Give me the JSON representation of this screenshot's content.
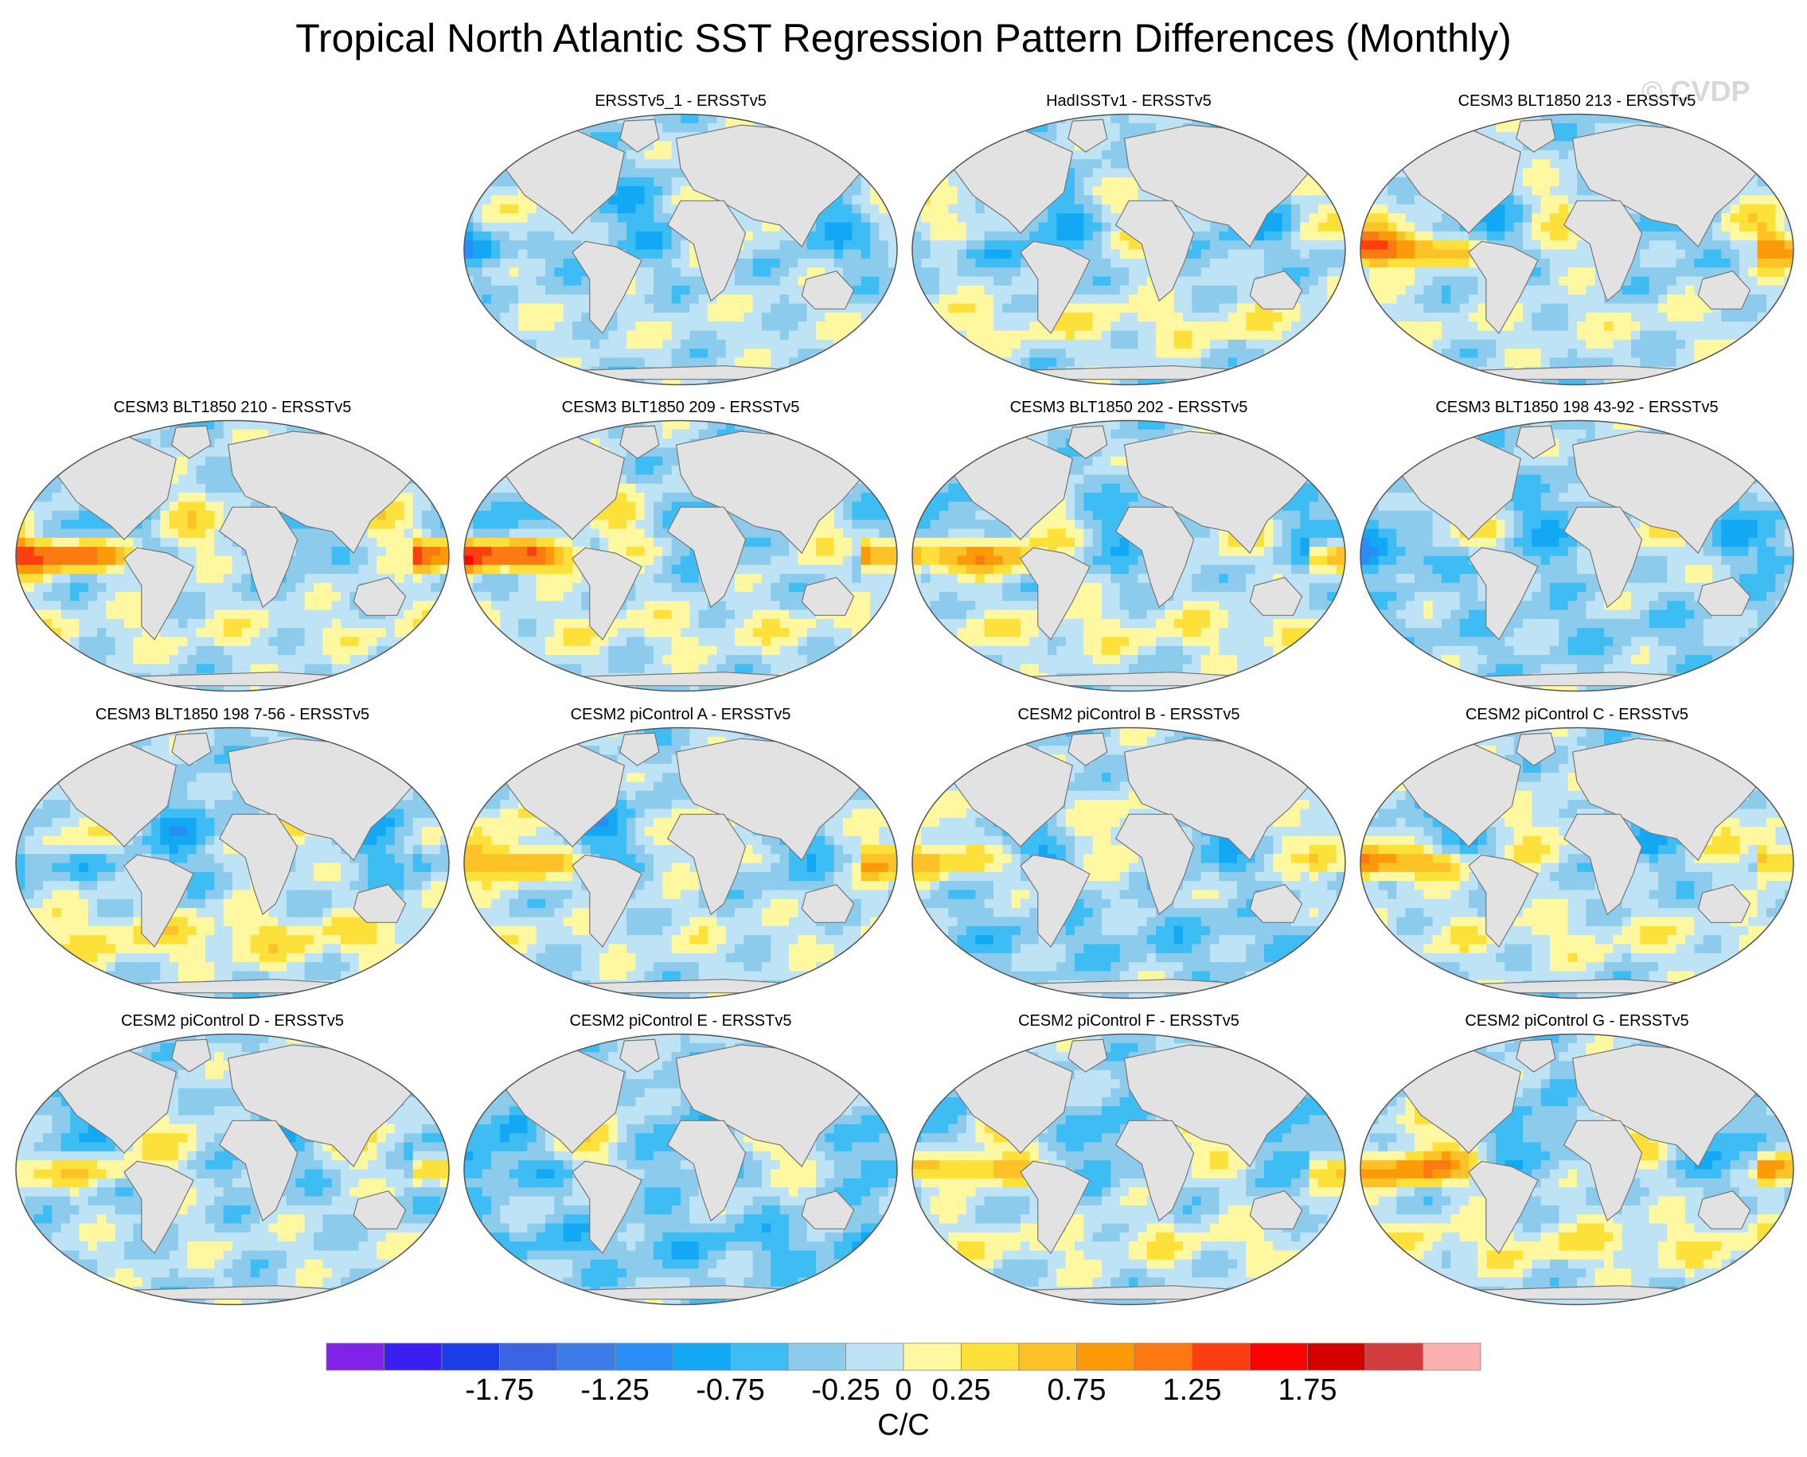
{
  "chart_data": {
    "type": "heatmap",
    "title": "Tropical North Atlantic SST Regression Pattern Differences (Monthly)",
    "watermark": "© CVDP",
    "projection": "Robinson (global)",
    "units": "C/C",
    "colorbar": {
      "levels": [
        -2.0,
        -1.75,
        -1.5,
        -1.25,
        -1.0,
        -0.75,
        -0.5,
        -0.25,
        0.0,
        0.25,
        0.5,
        0.75,
        1.0,
        1.25,
        1.5,
        1.75,
        2.0
      ],
      "tick_labels": [
        "-1.75",
        "-1.25",
        "-0.75",
        "-0.25",
        "0",
        "0.25",
        "0.75",
        "1.25",
        "1.75"
      ],
      "tick_values": [
        -1.75,
        -1.25,
        -0.75,
        -0.25,
        0,
        0.25,
        0.75,
        1.25,
        1.75
      ],
      "colors": [
        "#8122e8",
        "#3a1ff0",
        "#1c3ce8",
        "#3a64e2",
        "#3c7be8",
        "#2a8df6",
        "#12a8f4",
        "#3ebcf4",
        "#8ccbec",
        "#bde3f4",
        "#fff8a0",
        "#fde13a",
        "#fdc228",
        "#fd9a0a",
        "#fd7a12",
        "#fd3e10",
        "#fd0000",
        "#d40000",
        "#d23c3c",
        "#fdb0b0"
      ]
    },
    "panels": [
      {
        "title": "ERSSTv5_1 - ERSSTv5",
        "row": 0,
        "col": 1,
        "pacific": -0.45,
        "south": 0.15
      },
      {
        "title": "HadISSTv1 - ERSSTv5",
        "row": 0,
        "col": 2,
        "pacific": -0.4,
        "south": 0.35
      },
      {
        "title": "CESM3 BLT1850 213 - ERSSTv5",
        "row": 0,
        "col": 3,
        "pacific": 1.3,
        "south": 0.2
      },
      {
        "title": "CESM3 BLT1850 210 - ERSSTv5",
        "row": 1,
        "col": 0,
        "pacific": 1.6,
        "south": 0.25
      },
      {
        "title": "CESM3 BLT1850 209 - ERSSTv5",
        "row": 1,
        "col": 1,
        "pacific": 1.75,
        "south": 0.3
      },
      {
        "title": "CESM3 BLT1850 202 - ERSSTv5",
        "row": 1,
        "col": 2,
        "pacific": 1.3,
        "south": 0.35
      },
      {
        "title": "CESM3 BLT1850 198 43-92 - ERSSTv5",
        "row": 1,
        "col": 3,
        "pacific": -0.5,
        "south": -0.1
      },
      {
        "title": "CESM3 BLT1850 198 7-56 - ERSSTv5",
        "row": 2,
        "col": 0,
        "pacific": -0.4,
        "south": 0.5
      },
      {
        "title": "CESM2 piControl A - ERSSTv5",
        "row": 2,
        "col": 1,
        "pacific": 0.9,
        "south": 0.2
      },
      {
        "title": "CESM2 piControl B - ERSSTv5",
        "row": 2,
        "col": 2,
        "pacific": 0.6,
        "south": -0.2
      },
      {
        "title": "CESM2 piControl C - ERSSTv5",
        "row": 2,
        "col": 3,
        "pacific": 1.2,
        "south": 0.3
      },
      {
        "title": "CESM2 piControl D - ERSSTv5",
        "row": 3,
        "col": 0,
        "pacific": 0.8,
        "south": 0.1
      },
      {
        "title": "CESM2 piControl E - ERSSTv5",
        "row": 3,
        "col": 1,
        "pacific": -0.3,
        "south": -0.3
      },
      {
        "title": "CESM2 piControl F - ERSSTv5",
        "row": 3,
        "col": 2,
        "pacific": 0.9,
        "south": 0.3
      },
      {
        "title": "CESM2 piControl G - ERSSTv5",
        "row": 3,
        "col": 3,
        "pacific": 1.1,
        "south": 0.4
      }
    ]
  }
}
